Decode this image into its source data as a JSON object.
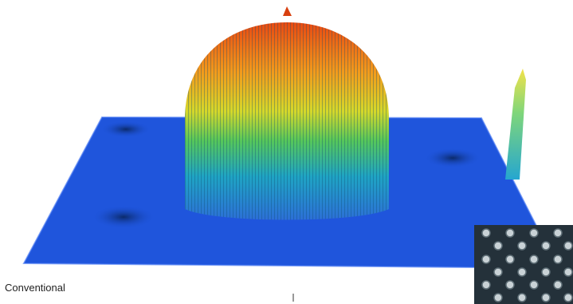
{
  "caption": "Conventional"
}
